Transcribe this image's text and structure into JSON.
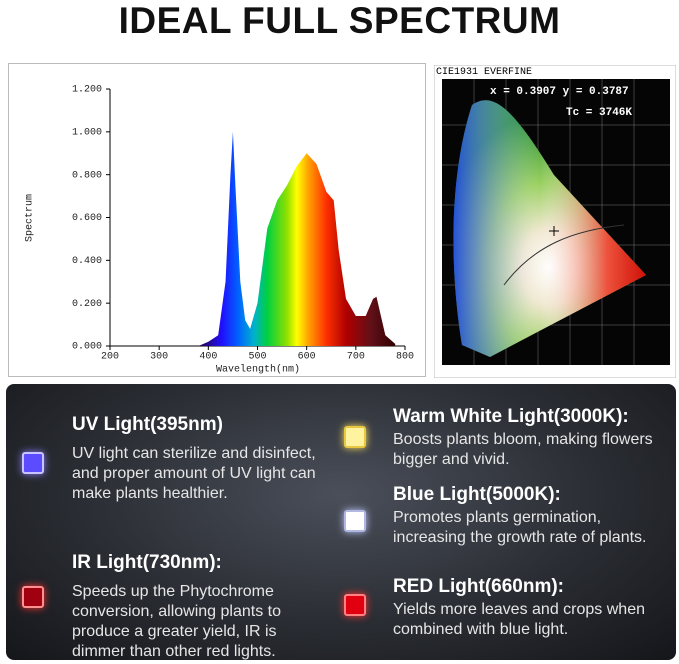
{
  "header": {
    "title": "IDEAL FULL SPECTRUM"
  },
  "chart_data": {
    "type": "area",
    "x_label": "Wavelength(nm)",
    "y_label": "Spectrum",
    "x": [
      380,
      400,
      420,
      435,
      445,
      450,
      455,
      465,
      475,
      485,
      500,
      520,
      540,
      560,
      580,
      600,
      620,
      640,
      655,
      665,
      680,
      700,
      720,
      735,
      742,
      750,
      760,
      780
    ],
    "values": [
      0,
      0.02,
      0.05,
      0.3,
      0.8,
      1.0,
      0.75,
      0.3,
      0.12,
      0.08,
      0.2,
      0.55,
      0.68,
      0.75,
      0.84,
      0.9,
      0.85,
      0.72,
      0.68,
      0.45,
      0.22,
      0.14,
      0.14,
      0.22,
      0.23,
      0.15,
      0.05,
      0.01
    ],
    "xlim": [
      200,
      800
    ],
    "xticks": [
      200,
      300,
      400,
      500,
      600,
      700,
      800
    ],
    "ylim": [
      0,
      1.2
    ],
    "yticks": [
      {
        "value": 0,
        "label": "0.000"
      },
      {
        "value": 0.2,
        "label": "0.200"
      },
      {
        "value": 0.4,
        "label": "0.400"
      },
      {
        "value": 0.6,
        "label": "0.600"
      },
      {
        "value": 0.8,
        "label": "0.800"
      },
      {
        "value": 1.0,
        "label": "1.000"
      },
      {
        "value": 1.2,
        "label": "1.200"
      }
    ]
  },
  "cie": {
    "title": "CIE1931 EVERFINE",
    "coords": "x = 0.3907 y = 0.3787",
    "tc": "Tc = 3746K"
  },
  "features": [
    {
      "title": "UV Light(395nm)",
      "text": "UV light can sterilize and disinfect, and proper amount of UV light can make plants healthier."
    },
    {
      "title": "IR Light(730nm):",
      "text": "Speeds up the Phytochrome conversion, allowing plants to produce a greater yield, IR is dimmer than other red lights."
    },
    {
      "title": "Warm White Light(3000K):",
      "text": "Boosts plants bloom, making flowers bigger and vivid."
    },
    {
      "title": "Blue Light(5000K):",
      "text": "Promotes plants germination, increasing the growth rate of plants."
    },
    {
      "title": "RED Light(660nm):",
      "text": "Yields more leaves and crops when combined with blue light."
    }
  ]
}
